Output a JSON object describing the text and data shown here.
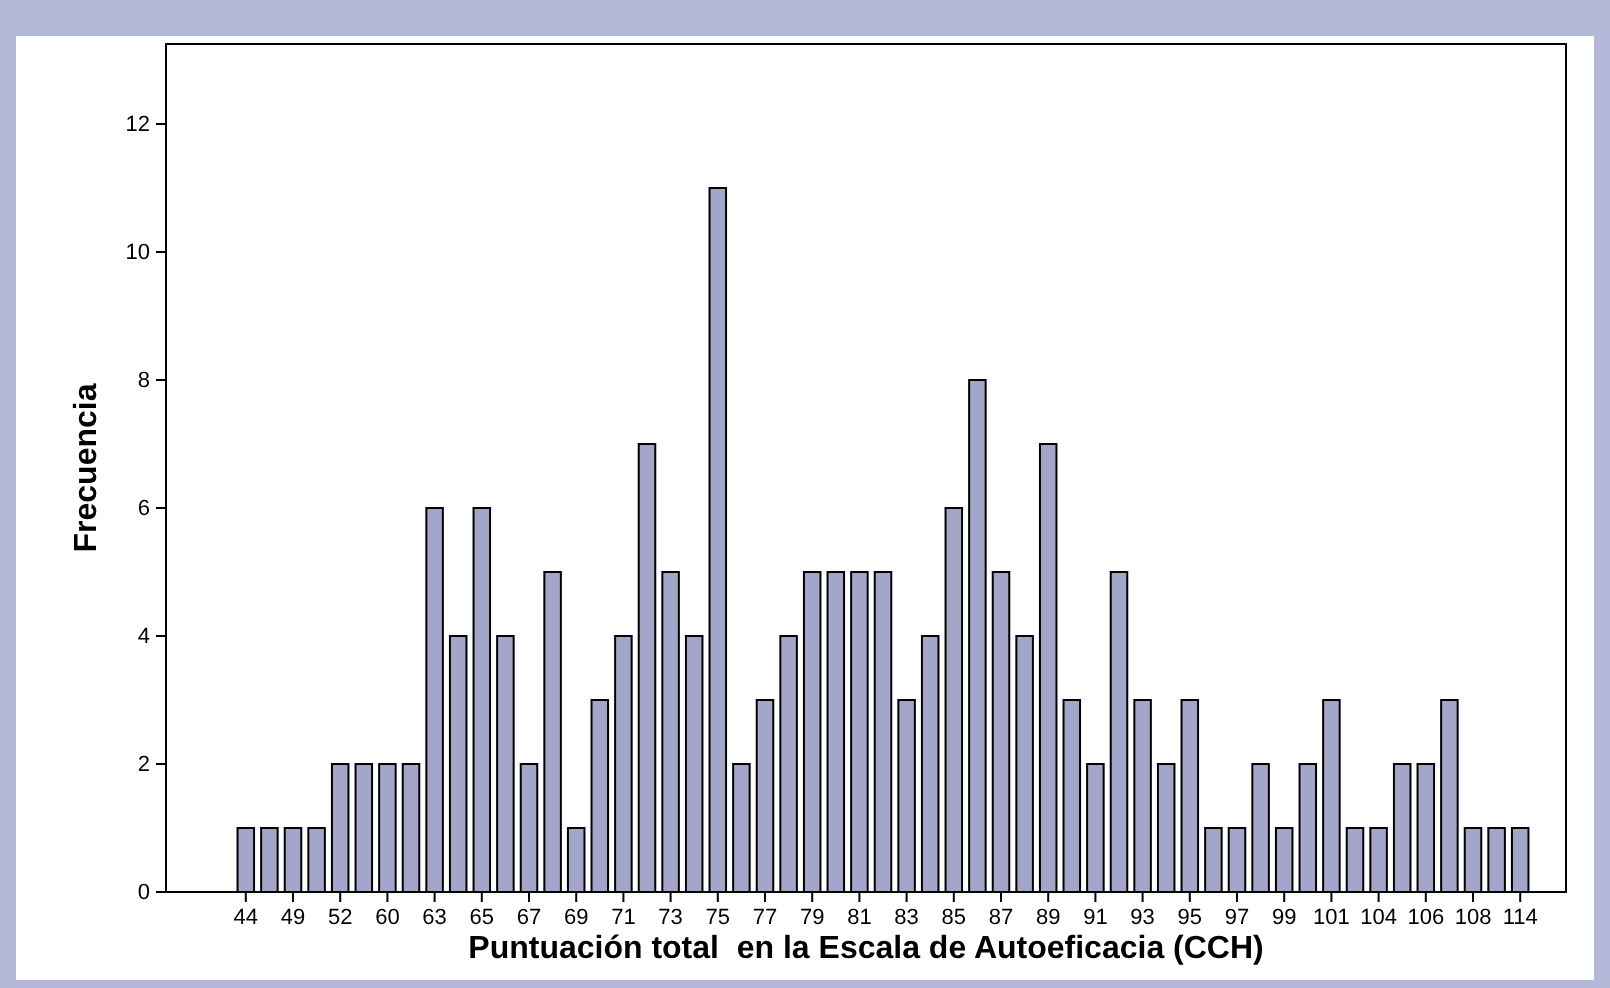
{
  "chart_data": {
    "type": "bar",
    "xlabel": "Puntuación total  en la Escala de Autoeficacia (CCH)",
    "ylabel": "Frecuencia",
    "categories": [
      "44",
      null,
      "49",
      null,
      "52",
      null,
      "60",
      null,
      "63",
      null,
      "65",
      null,
      "67",
      null,
      "69",
      null,
      "71",
      null,
      "73",
      null,
      "75",
      null,
      "77",
      null,
      "79",
      null,
      "81",
      null,
      "83",
      null,
      "85",
      null,
      "87",
      null,
      "89",
      null,
      "91",
      null,
      "93",
      null,
      "95",
      null,
      "97",
      null,
      "99",
      null,
      "101",
      null,
      "104",
      null,
      "106",
      null,
      "108",
      null,
      "114"
    ],
    "values": [
      1,
      1,
      1,
      1,
      2,
      2,
      2,
      2,
      6,
      4,
      6,
      4,
      2,
      5,
      1,
      3,
      4,
      7,
      5,
      4,
      11,
      2,
      3,
      4,
      5,
      5,
      5,
      5,
      3,
      4,
      6,
      8,
      5,
      4,
      7,
      3,
      2,
      5,
      3,
      2,
      3,
      1,
      1,
      2,
      1,
      2,
      3,
      1,
      1,
      2,
      2,
      3,
      1,
      1,
      1
    ],
    "color": "#a3a6c8",
    "ylim": [
      0,
      13.25
    ],
    "yticks": [
      0,
      2,
      4,
      6,
      8,
      10,
      12
    ],
    "grid": false
  }
}
